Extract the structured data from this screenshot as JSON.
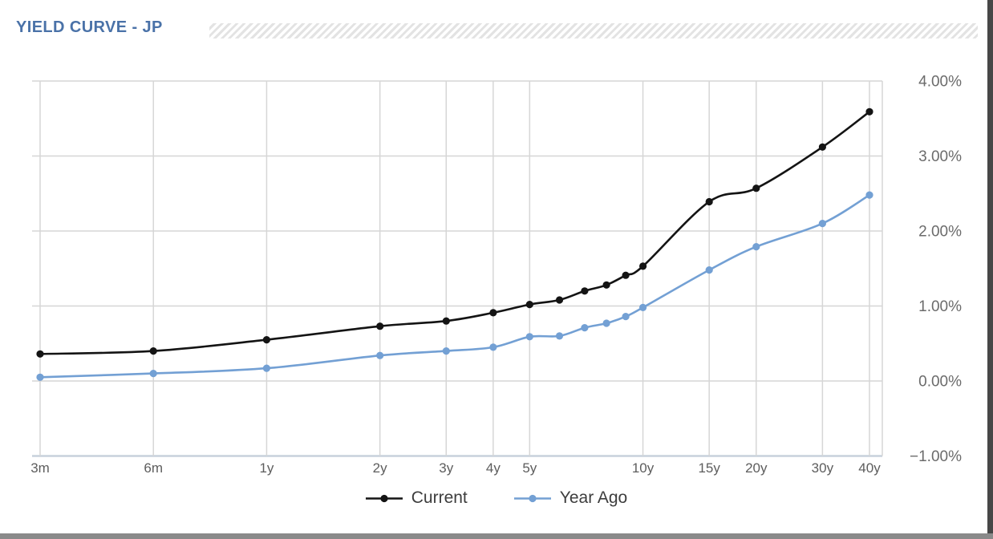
{
  "header": {
    "title": "YIELD CURVE - JP"
  },
  "colors": {
    "title": "#4a72a8",
    "gridline": "#d6d6d6",
    "axis_line": "#c7d1dc",
    "x_tick_text": "#5d5d5d",
    "y_tick_text": "#6b6b6b",
    "legend_text": "#3d3d3d",
    "series_current": "#141414",
    "series_year_ago": "#73a0d4"
  },
  "chart_data": {
    "type": "line",
    "title": "YIELD CURVE - JP",
    "smoothed_lines": true,
    "markers": true,
    "grid": true,
    "legend_position": "bottom",
    "x_axis": {
      "scale": "log",
      "unit": "maturity",
      "tick_labels": [
        "3m",
        "6m",
        "1y",
        "2y",
        "3y",
        "4y",
        "5y",
        "10y",
        "15y",
        "20y",
        "30y",
        "40y"
      ],
      "tick_years": [
        0.25,
        0.5,
        1,
        2,
        3,
        4,
        5,
        10,
        15,
        20,
        30,
        40
      ]
    },
    "y_axis": {
      "side": "right",
      "tick_labels": [
        "4.00%",
        "3.00%",
        "2.00%",
        "1.00%",
        "0.00%",
        "−1.00%"
      ],
      "tick_values": [
        4,
        3,
        2,
        1,
        0,
        -1
      ],
      "ylim": [
        -1,
        4
      ],
      "format": "percent"
    },
    "categories": [
      "3m",
      "6m",
      "1y",
      "2y",
      "3y",
      "4y",
      "5y",
      "6y",
      "7y",
      "8y",
      "9y",
      "10y",
      "15y",
      "20y",
      "30y",
      "40y"
    ],
    "x_years": [
      0.25,
      0.5,
      1,
      2,
      3,
      4,
      5,
      6,
      7,
      8,
      9,
      10,
      15,
      20,
      30,
      40
    ],
    "series": [
      {
        "name": "Current",
        "color": "#141414",
        "values": [
          0.36,
          0.4,
          0.55,
          0.73,
          0.8,
          0.91,
          1.02,
          1.08,
          1.2,
          1.28,
          1.41,
          1.53,
          2.39,
          2.57,
          3.12,
          3.59
        ]
      },
      {
        "name": "Year Ago",
        "color": "#73a0d4",
        "values": [
          0.05,
          0.1,
          0.17,
          0.34,
          0.4,
          0.45,
          0.59,
          0.6,
          0.71,
          0.77,
          0.86,
          0.98,
          1.48,
          1.79,
          2.1,
          2.48
        ]
      }
    ]
  }
}
